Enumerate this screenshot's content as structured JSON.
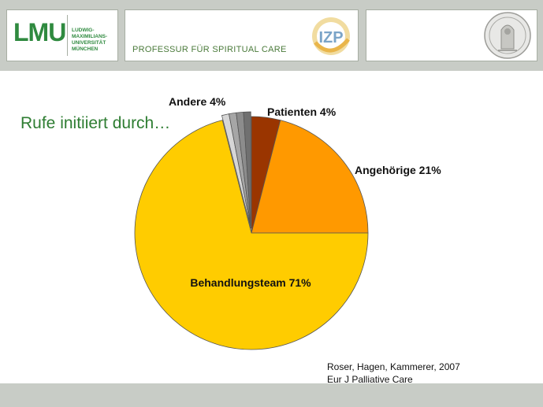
{
  "header": {
    "logo_text": "LMU",
    "university_lines": [
      "LUDWIG-",
      "MAXIMILIANS-",
      "UNIVERSITÄT",
      "MÜNCHEN"
    ],
    "professorship": "PROFESSUR FÜR SPIRITUAL CARE",
    "izp_logo_text": "IZP"
  },
  "slide": {
    "title": "Rufe initiiert durch…"
  },
  "citation": {
    "line1": "Roser, Hagen, Kammerer, 2007",
    "line2": "Eur J Palliative Care"
  },
  "colors": {
    "header_bg": "#c8ccc6",
    "brand_green": "#2f8a3f",
    "title_green": "#2e7d32"
  },
  "chart_data": {
    "type": "pie",
    "title": "",
    "slices": [
      {
        "label": "Patienten 4%",
        "value": 4,
        "color": "#9a3500"
      },
      {
        "label": "Angehörige 21%",
        "value": 21,
        "color": "#ff9900"
      },
      {
        "label": "Behandlungsteam 71%",
        "value": 71,
        "color": "#ffcc00"
      },
      {
        "label": "Andere 4%",
        "value": 4,
        "color": "#b0b0b0",
        "sub_colors": [
          "#d6d6d6",
          "#a6a6a6",
          "#8c8c8c",
          "#707070"
        ],
        "exploded": true
      }
    ]
  }
}
